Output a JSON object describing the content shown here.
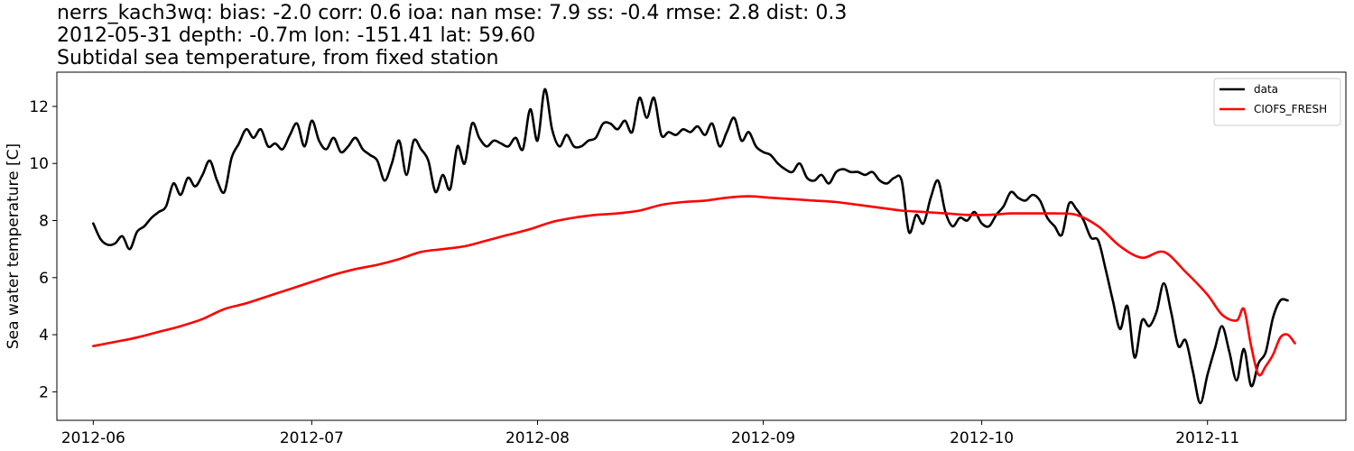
{
  "chart_data": {
    "type": "line",
    "title_lines": [
      "nerrs_kach3wq: bias: -2.0  corr: 0.6  ioa: nan  mse: 7.9  ss: -0.4  rmse: 2.8  dist: 0.3",
      "2012-05-31 depth: -0.7m lon: -151.41 lat: 59.60",
      "Subtidal sea temperature, from fixed station"
    ],
    "xlabel": "",
    "ylabel": "Sea water temperature [C]",
    "xlim": [
      "2012-05-27",
      "2012-11-20"
    ],
    "ylim": [
      1.0,
      13.2
    ],
    "x_ticks": [
      "2012-06-01",
      "2012-07-01",
      "2012-08-01",
      "2012-09-01",
      "2012-10-01",
      "2012-11-01"
    ],
    "x_tick_labels": [
      "2012-06",
      "2012-07",
      "2012-08",
      "2012-09",
      "2012-10",
      "2012-11"
    ],
    "y_ticks": [
      2,
      4,
      6,
      8,
      10,
      12
    ],
    "grid": false,
    "legend_position": "top-right",
    "series": [
      {
        "name": "data",
        "color": "#000000",
        "points": [
          [
            "2012-06-01",
            7.9
          ],
          [
            "2012-06-02",
            7.35
          ],
          [
            "2012-06-03",
            7.15
          ],
          [
            "2012-06-04",
            7.2
          ],
          [
            "2012-06-05",
            7.45
          ],
          [
            "2012-06-06",
            7.0
          ],
          [
            "2012-06-07",
            7.6
          ],
          [
            "2012-06-08",
            7.8
          ],
          [
            "2012-06-09",
            8.1
          ],
          [
            "2012-06-10",
            8.3
          ],
          [
            "2012-06-11",
            8.5
          ],
          [
            "2012-06-12",
            9.3
          ],
          [
            "2012-06-13",
            8.9
          ],
          [
            "2012-06-14",
            9.5
          ],
          [
            "2012-06-15",
            9.2
          ],
          [
            "2012-06-16",
            9.6
          ],
          [
            "2012-06-17",
            10.1
          ],
          [
            "2012-06-18",
            9.4
          ],
          [
            "2012-06-19",
            9.0
          ],
          [
            "2012-06-20",
            10.2
          ],
          [
            "2012-06-21",
            10.7
          ],
          [
            "2012-06-22",
            11.2
          ],
          [
            "2012-06-23",
            10.9
          ],
          [
            "2012-06-24",
            11.2
          ],
          [
            "2012-06-25",
            10.6
          ],
          [
            "2012-06-26",
            10.7
          ],
          [
            "2012-06-27",
            10.5
          ],
          [
            "2012-06-28",
            11.0
          ],
          [
            "2012-06-29",
            11.4
          ],
          [
            "2012-06-30",
            10.6
          ],
          [
            "2012-07-01",
            11.5
          ],
          [
            "2012-07-02",
            10.8
          ],
          [
            "2012-07-03",
            10.5
          ],
          [
            "2012-07-04",
            10.9
          ],
          [
            "2012-07-05",
            10.4
          ],
          [
            "2012-07-06",
            10.6
          ],
          [
            "2012-07-07",
            10.9
          ],
          [
            "2012-07-08",
            10.5
          ],
          [
            "2012-07-09",
            10.3
          ],
          [
            "2012-07-10",
            10.1
          ],
          [
            "2012-07-11",
            9.4
          ],
          [
            "2012-07-12",
            10.0
          ],
          [
            "2012-07-13",
            10.8
          ],
          [
            "2012-07-14",
            9.6
          ],
          [
            "2012-07-15",
            10.8
          ],
          [
            "2012-07-16",
            10.5
          ],
          [
            "2012-07-17",
            10.1
          ],
          [
            "2012-07-18",
            9.0
          ],
          [
            "2012-07-19",
            9.6
          ],
          [
            "2012-07-20",
            9.1
          ],
          [
            "2012-07-21",
            10.6
          ],
          [
            "2012-07-22",
            10.0
          ],
          [
            "2012-07-23",
            11.4
          ],
          [
            "2012-07-24",
            10.9
          ],
          [
            "2012-07-25",
            10.6
          ],
          [
            "2012-07-26",
            10.8
          ],
          [
            "2012-07-27",
            10.7
          ],
          [
            "2012-07-28",
            10.6
          ],
          [
            "2012-07-29",
            10.9
          ],
          [
            "2012-07-30",
            10.5
          ],
          [
            "2012-07-31",
            11.9
          ],
          [
            "2012-08-01",
            10.8
          ],
          [
            "2012-08-02",
            12.6
          ],
          [
            "2012-08-03",
            11.2
          ],
          [
            "2012-08-04",
            10.6
          ],
          [
            "2012-08-05",
            11.0
          ],
          [
            "2012-08-06",
            10.6
          ],
          [
            "2012-08-07",
            10.6
          ],
          [
            "2012-08-08",
            10.8
          ],
          [
            "2012-08-09",
            10.9
          ],
          [
            "2012-08-10",
            11.4
          ],
          [
            "2012-08-11",
            11.4
          ],
          [
            "2012-08-12",
            11.2
          ],
          [
            "2012-08-13",
            11.5
          ],
          [
            "2012-08-14",
            11.1
          ],
          [
            "2012-08-15",
            12.3
          ],
          [
            "2012-08-16",
            11.6
          ],
          [
            "2012-08-17",
            12.3
          ],
          [
            "2012-08-18",
            11.0
          ],
          [
            "2012-08-19",
            11.1
          ],
          [
            "2012-08-20",
            11.0
          ],
          [
            "2012-08-21",
            11.2
          ],
          [
            "2012-08-22",
            11.1
          ],
          [
            "2012-08-23",
            11.3
          ],
          [
            "2012-08-24",
            11.0
          ],
          [
            "2012-08-25",
            11.4
          ],
          [
            "2012-08-26",
            10.6
          ],
          [
            "2012-08-27",
            11.1
          ],
          [
            "2012-08-28",
            11.6
          ],
          [
            "2012-08-29",
            10.8
          ],
          [
            "2012-08-30",
            11.1
          ],
          [
            "2012-08-31",
            10.6
          ],
          [
            "2012-09-01",
            10.4
          ],
          [
            "2012-09-02",
            10.3
          ],
          [
            "2012-09-03",
            10.0
          ],
          [
            "2012-09-04",
            9.8
          ],
          [
            "2012-09-05",
            9.7
          ],
          [
            "2012-09-06",
            10.0
          ],
          [
            "2012-09-07",
            9.5
          ],
          [
            "2012-09-08",
            9.4
          ],
          [
            "2012-09-09",
            9.6
          ],
          [
            "2012-09-10",
            9.3
          ],
          [
            "2012-09-11",
            9.7
          ],
          [
            "2012-09-12",
            9.8
          ],
          [
            "2012-09-13",
            9.7
          ],
          [
            "2012-09-14",
            9.7
          ],
          [
            "2012-09-15",
            9.6
          ],
          [
            "2012-09-16",
            9.7
          ],
          [
            "2012-09-17",
            9.4
          ],
          [
            "2012-09-18",
            9.3
          ],
          [
            "2012-09-19",
            9.5
          ],
          [
            "2012-09-20",
            9.4
          ],
          [
            "2012-09-21",
            7.6
          ],
          [
            "2012-09-22",
            8.2
          ],
          [
            "2012-09-23",
            7.9
          ],
          [
            "2012-09-24",
            8.8
          ],
          [
            "2012-09-25",
            9.4
          ],
          [
            "2012-09-26",
            8.3
          ],
          [
            "2012-09-27",
            7.8
          ],
          [
            "2012-09-28",
            8.1
          ],
          [
            "2012-09-29",
            8.0
          ],
          [
            "2012-09-30",
            8.3
          ],
          [
            "2012-10-01",
            7.9
          ],
          [
            "2012-10-02",
            7.8
          ],
          [
            "2012-10-03",
            8.2
          ],
          [
            "2012-10-04",
            8.5
          ],
          [
            "2012-10-05",
            9.0
          ],
          [
            "2012-10-06",
            8.8
          ],
          [
            "2012-10-07",
            8.7
          ],
          [
            "2012-10-08",
            8.9
          ],
          [
            "2012-10-09",
            8.7
          ],
          [
            "2012-10-10",
            8.1
          ],
          [
            "2012-10-11",
            7.8
          ],
          [
            "2012-10-12",
            7.5
          ],
          [
            "2012-10-13",
            8.6
          ],
          [
            "2012-10-14",
            8.4
          ],
          [
            "2012-10-15",
            8.0
          ],
          [
            "2012-10-16",
            7.4
          ],
          [
            "2012-10-17",
            7.3
          ],
          [
            "2012-10-18",
            6.3
          ],
          [
            "2012-10-19",
            5.2
          ],
          [
            "2012-10-20",
            4.2
          ],
          [
            "2012-10-21",
            5.0
          ],
          [
            "2012-10-22",
            3.2
          ],
          [
            "2012-10-23",
            4.5
          ],
          [
            "2012-10-24",
            4.3
          ],
          [
            "2012-10-25",
            4.8
          ],
          [
            "2012-10-26",
            5.8
          ],
          [
            "2012-10-27",
            4.8
          ],
          [
            "2012-10-28",
            3.6
          ],
          [
            "2012-10-29",
            3.8
          ],
          [
            "2012-10-30",
            2.7
          ],
          [
            "2012-10-31",
            1.6
          ],
          [
            "2012-11-01",
            2.6
          ],
          [
            "2012-11-02",
            3.5
          ],
          [
            "2012-11-03",
            4.3
          ],
          [
            "2012-11-04",
            3.4
          ],
          [
            "2012-11-05",
            2.4
          ],
          [
            "2012-11-06",
            3.5
          ],
          [
            "2012-11-07",
            2.2
          ],
          [
            "2012-11-08",
            3.0
          ],
          [
            "2012-11-09",
            3.4
          ],
          [
            "2012-11-10",
            4.6
          ],
          [
            "2012-11-11",
            5.2
          ],
          [
            "2012-11-12",
            5.2
          ]
        ]
      },
      {
        "name": "CIOFS_FRESH",
        "color": "#ff0000",
        "points": [
          [
            "2012-06-01",
            3.6
          ],
          [
            "2012-06-04",
            3.75
          ],
          [
            "2012-06-07",
            3.9
          ],
          [
            "2012-06-10",
            4.1
          ],
          [
            "2012-06-13",
            4.3
          ],
          [
            "2012-06-16",
            4.55
          ],
          [
            "2012-06-19",
            4.9
          ],
          [
            "2012-06-22",
            5.1
          ],
          [
            "2012-06-25",
            5.35
          ],
          [
            "2012-06-28",
            5.6
          ],
          [
            "2012-07-01",
            5.85
          ],
          [
            "2012-07-04",
            6.1
          ],
          [
            "2012-07-07",
            6.3
          ],
          [
            "2012-07-10",
            6.45
          ],
          [
            "2012-07-13",
            6.65
          ],
          [
            "2012-07-16",
            6.9
          ],
          [
            "2012-07-19",
            7.0
          ],
          [
            "2012-07-22",
            7.1
          ],
          [
            "2012-07-25",
            7.3
          ],
          [
            "2012-07-28",
            7.5
          ],
          [
            "2012-07-31",
            7.7
          ],
          [
            "2012-08-03",
            7.95
          ],
          [
            "2012-08-06",
            8.1
          ],
          [
            "2012-08-09",
            8.2
          ],
          [
            "2012-08-12",
            8.25
          ],
          [
            "2012-08-15",
            8.35
          ],
          [
            "2012-08-18",
            8.55
          ],
          [
            "2012-08-21",
            8.65
          ],
          [
            "2012-08-24",
            8.7
          ],
          [
            "2012-08-27",
            8.8
          ],
          [
            "2012-08-30",
            8.85
          ],
          [
            "2012-09-02",
            8.8
          ],
          [
            "2012-09-05",
            8.75
          ],
          [
            "2012-09-08",
            8.7
          ],
          [
            "2012-09-11",
            8.65
          ],
          [
            "2012-09-14",
            8.55
          ],
          [
            "2012-09-17",
            8.45
          ],
          [
            "2012-09-20",
            8.35
          ],
          [
            "2012-09-23",
            8.3
          ],
          [
            "2012-09-26",
            8.25
          ],
          [
            "2012-09-29",
            8.2
          ],
          [
            "2012-10-02",
            8.2
          ],
          [
            "2012-10-05",
            8.25
          ],
          [
            "2012-10-08",
            8.25
          ],
          [
            "2012-10-11",
            8.25
          ],
          [
            "2012-10-14",
            8.2
          ],
          [
            "2012-10-17",
            7.8
          ],
          [
            "2012-10-20",
            7.1
          ],
          [
            "2012-10-23",
            6.7
          ],
          [
            "2012-10-26",
            6.9
          ],
          [
            "2012-10-29",
            6.2
          ],
          [
            "2012-11-01",
            5.4
          ],
          [
            "2012-11-03",
            4.7
          ],
          [
            "2012-11-05",
            4.5
          ],
          [
            "2012-11-06",
            4.9
          ],
          [
            "2012-11-07",
            3.6
          ],
          [
            "2012-11-08",
            2.6
          ],
          [
            "2012-11-09",
            2.9
          ],
          [
            "2012-11-10",
            3.3
          ],
          [
            "2012-11-11",
            3.9
          ],
          [
            "2012-11-12",
            4.0
          ],
          [
            "2012-11-13",
            3.7
          ]
        ]
      }
    ]
  }
}
